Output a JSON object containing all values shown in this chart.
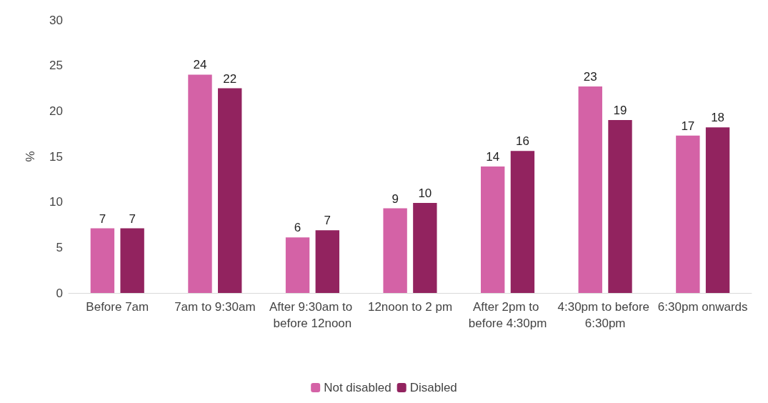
{
  "chart_data": {
    "type": "bar",
    "ylabel": "%",
    "categories": [
      "Before 7am",
      "7am to 9:30am",
      "After 9:30am to before 12noon",
      "12noon to 2 pm",
      "After 2pm to before 4:30pm",
      "4:30pm to before 6:30pm",
      "6:30pm onwards"
    ],
    "series": [
      {
        "name": "Not disabled",
        "color": "#d462a6",
        "values": [
          7.1,
          24.0,
          6.1,
          9.3,
          13.9,
          22.7,
          17.3
        ],
        "value_labels": [
          "7",
          "24",
          "6",
          "9",
          "14",
          "23",
          "17"
        ]
      },
      {
        "name": "Disabled",
        "color": "#92235f",
        "values": [
          7.1,
          22.5,
          6.9,
          9.9,
          15.6,
          19.0,
          18.2
        ],
        "value_labels": [
          "7",
          "22",
          "7",
          "10",
          "16",
          "19",
          "18"
        ]
      }
    ],
    "ylim": [
      0,
      30
    ],
    "yticks": [
      0,
      5,
      10,
      15,
      20,
      25,
      30
    ],
    "legend": "bottom"
  }
}
